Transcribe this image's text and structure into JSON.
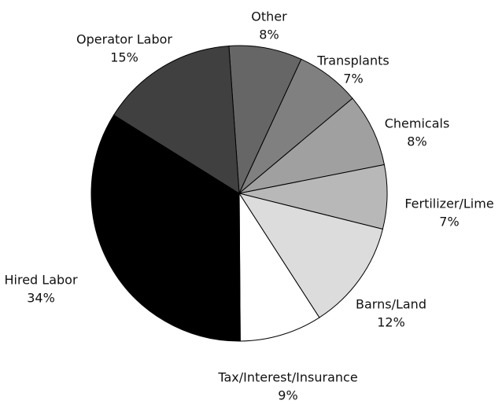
{
  "chart_data": {
    "type": "pie",
    "categories": [
      "Other",
      "Transplants",
      "Chemicals",
      "Fertilizer/Lime",
      "Barns/Land",
      "Tax/Interest/Insurance",
      "Hired Labor",
      "Operator Labor"
    ],
    "values": [
      8,
      7,
      8,
      7,
      12,
      9,
      34,
      15
    ],
    "value_labels": [
      "8%",
      "7%",
      "8%",
      "7%",
      "12%",
      "9%",
      "34%",
      "15%"
    ],
    "colors": [
      "#666666",
      "#808080",
      "#a0a0a0",
      "#b8b8b8",
      "#dcdcdc",
      "#ffffff",
      "#000000",
      "#404040"
    ]
  }
}
